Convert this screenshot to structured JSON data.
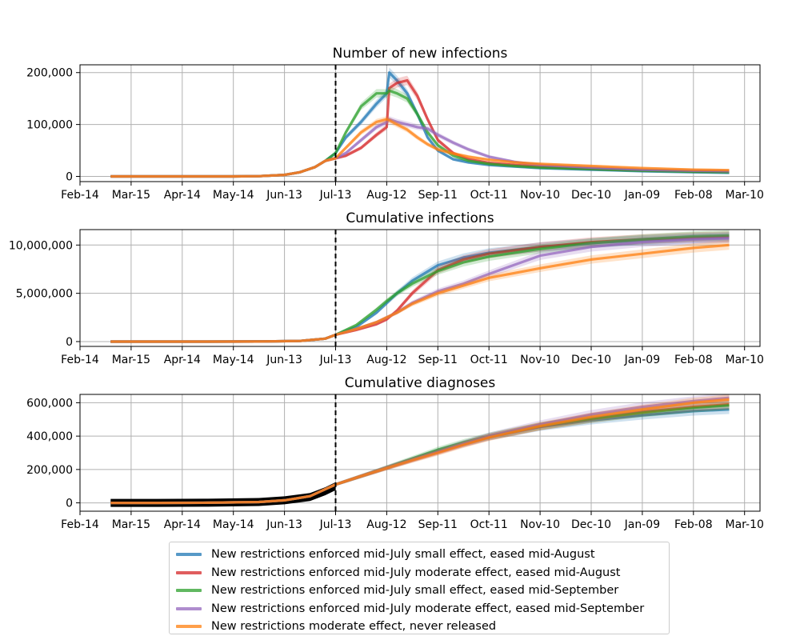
{
  "x_ticks": [
    "Feb-14",
    "Mar-15",
    "Apr-14",
    "May-14",
    "Jun-13",
    "Jul-13",
    "Aug-12",
    "Sep-11",
    "Oct-11",
    "Nov-10",
    "Dec-10",
    "Jan-09",
    "Feb-08",
    "Mar-10"
  ],
  "event_date_index": 5,
  "legend": [
    {
      "name": "New restrictions enforced mid-July small effect, eased mid-August",
      "color": "#1f77b4"
    },
    {
      "name": "New restrictions enforced mid-July moderate effect, eased mid-August",
      "color": "#d62728"
    },
    {
      "name": "New restrictions enforced mid-July small effect, eased mid-September",
      "color": "#2ca02c"
    },
    {
      "name": "New restrictions enforced mid-July moderate effect, eased mid-September",
      "color": "#9467bd"
    },
    {
      "name": "New restrictions moderate effect, never released",
      "color": "#ff7f0e"
    }
  ],
  "chart_data": [
    {
      "type": "line",
      "title": "Number of new infections",
      "ylim": [
        -10000,
        215000
      ],
      "yticks": [
        0,
        100000,
        200000
      ],
      "ytick_labels": [
        "0",
        "100,000",
        "200,000"
      ],
      "x": [
        0.6,
        1.0,
        1.5,
        2.0,
        2.5,
        3.0,
        3.5,
        4.0,
        4.3,
        4.6,
        4.8,
        5.0,
        5.2,
        5.5,
        5.8,
        6.0,
        6.05,
        6.2,
        6.4,
        6.6,
        6.8,
        7.0,
        7.3,
        7.6,
        8.0,
        8.5,
        9.0,
        10.0,
        11.0,
        12.0,
        12.7
      ],
      "series": [
        {
          "name": "New restrictions enforced mid-July small effect, eased mid-August",
          "values": [
            0,
            0,
            0,
            0,
            0,
            0,
            500,
            3000,
            8000,
            18000,
            30000,
            45000,
            75000,
            105000,
            140000,
            160000,
            200000,
            185000,
            160000,
            120000,
            75000,
            50000,
            33000,
            27000,
            22000,
            19000,
            16000,
            13000,
            10000,
            8000,
            7000
          ]
        },
        {
          "name": "New restrictions enforced mid-July moderate effect, eased mid-August",
          "values": [
            0,
            0,
            0,
            0,
            0,
            0,
            500,
            3000,
            8000,
            18000,
            30000,
            35000,
            40000,
            55000,
            80000,
            95000,
            170000,
            180000,
            185000,
            155000,
            110000,
            70000,
            45000,
            33000,
            26000,
            22000,
            19000,
            15000,
            12000,
            10000,
            9000
          ]
        },
        {
          "name": "New restrictions enforced mid-July small effect, eased mid-September",
          "values": [
            0,
            0,
            0,
            0,
            0,
            0,
            500,
            3000,
            8000,
            18000,
            30000,
            45000,
            85000,
            135000,
            160000,
            160000,
            165000,
            160000,
            150000,
            120000,
            85000,
            60000,
            40000,
            30000,
            24000,
            20000,
            17000,
            14000,
            11000,
            9000,
            8000
          ]
        },
        {
          "name": "New restrictions enforced mid-July moderate effect, eased mid-September",
          "values": [
            0,
            0,
            0,
            0,
            0,
            0,
            500,
            3000,
            8000,
            18000,
            30000,
            35000,
            45000,
            70000,
            95000,
            105000,
            110000,
            105000,
            100000,
            95000,
            92000,
            80000,
            65000,
            52000,
            38000,
            28000,
            22000,
            17000,
            13000,
            11000,
            10000
          ]
        },
        {
          "name": "New restrictions moderate effect, never released",
          "values": [
            0,
            0,
            0,
            0,
            0,
            0,
            500,
            3000,
            8000,
            18000,
            30000,
            35000,
            55000,
            85000,
            105000,
            110000,
            108000,
            100000,
            90000,
            75000,
            62000,
            52000,
            44000,
            38000,
            32000,
            27000,
            24000,
            20000,
            16000,
            13000,
            12000
          ]
        }
      ]
    },
    {
      "type": "line",
      "title": "Cumulative infections",
      "ylim": [
        -500000,
        11600000
      ],
      "yticks": [
        0,
        5000000,
        10000000
      ],
      "ytick_labels": [
        "0",
        "5,000,000",
        "10,000,000"
      ],
      "x": [
        0.6,
        1.5,
        2.5,
        3.5,
        4.3,
        4.8,
        5.0,
        5.4,
        5.8,
        6.0,
        6.2,
        6.5,
        7.0,
        7.5,
        8.0,
        9.0,
        10.0,
        11.0,
        12.0,
        12.7
      ],
      "series": [
        {
          "name": "New restrictions enforced mid-July small effect, eased mid-August",
          "values": [
            0,
            0,
            0,
            5000,
            60000,
            300000,
            700000,
            1500000,
            3000000,
            4000000,
            5000000,
            6300000,
            7900000,
            8700000,
            9200000,
            9800000,
            10200000,
            10500000,
            10700000,
            10800000
          ]
        },
        {
          "name": "New restrictions enforced mid-July moderate effect, eased mid-August",
          "values": [
            0,
            0,
            0,
            5000,
            60000,
            300000,
            700000,
            1200000,
            1800000,
            2300000,
            3200000,
            5000000,
            7400000,
            8500000,
            9100000,
            9800000,
            10300000,
            10600000,
            10800000,
            10900000
          ]
        },
        {
          "name": "New restrictions enforced mid-July small effect, eased mid-September",
          "values": [
            0,
            0,
            0,
            5000,
            60000,
            300000,
            700000,
            1700000,
            3300000,
            4200000,
            5000000,
            6000000,
            7300000,
            8200000,
            8800000,
            9600000,
            10200000,
            10600000,
            10900000,
            11000000
          ]
        },
        {
          "name": "New restrictions enforced mid-July moderate effect, eased mid-September",
          "values": [
            0,
            0,
            0,
            5000,
            60000,
            300000,
            700000,
            1300000,
            2000000,
            2500000,
            3000000,
            4000000,
            5200000,
            6000000,
            7000000,
            8900000,
            9800000,
            10300000,
            10600000,
            10700000
          ]
        },
        {
          "name": "New restrictions moderate effect, never released",
          "values": [
            0,
            0,
            0,
            5000,
            60000,
            300000,
            700000,
            1300000,
            2000000,
            2500000,
            3000000,
            3900000,
            5000000,
            5800000,
            6600000,
            7600000,
            8500000,
            9100000,
            9700000,
            10000000
          ]
        }
      ]
    },
    {
      "type": "line",
      "title": "Cumulative diagnoses",
      "ylim": [
        -50000,
        650000
      ],
      "yticks": [
        0,
        200000,
        400000,
        600000
      ],
      "ytick_labels": [
        "0",
        "200,000",
        "400,000",
        "600,000"
      ],
      "x": [
        0.6,
        1.5,
        2.5,
        3.5,
        4.0,
        4.5,
        5.0,
        5.5,
        6.0,
        6.5,
        7.0,
        7.5,
        8.0,
        9.0,
        10.0,
        11.0,
        12.0,
        12.7
      ],
      "observed": {
        "x": [
          0.6,
          1.5,
          2.5,
          3.5,
          4.0,
          4.5,
          4.8,
          5.0
        ],
        "values": [
          0,
          0,
          1000,
          5000,
          15000,
          35000,
          70000,
          100000
        ]
      },
      "series": [
        {
          "name": "New restrictions enforced mid-July small effect, eased mid-August",
          "values": [
            0,
            0,
            1000,
            5000,
            15000,
            40000,
            110000,
            160000,
            210000,
            260000,
            310000,
            355000,
            395000,
            455000,
            495000,
            525000,
            550000,
            560000
          ]
        },
        {
          "name": "New restrictions enforced mid-July moderate effect, eased mid-August",
          "values": [
            0,
            0,
            1000,
            5000,
            15000,
            40000,
            110000,
            160000,
            210000,
            258000,
            305000,
            352000,
            395000,
            458000,
            505000,
            545000,
            575000,
            590000
          ]
        },
        {
          "name": "New restrictions enforced mid-July small effect, eased mid-September",
          "values": [
            0,
            0,
            1000,
            5000,
            15000,
            40000,
            110000,
            160000,
            212000,
            265000,
            318000,
            362000,
            400000,
            460000,
            505000,
            540000,
            570000,
            585000
          ]
        },
        {
          "name": "New restrictions enforced mid-July moderate effect, eased mid-September",
          "values": [
            0,
            0,
            1000,
            5000,
            15000,
            40000,
            110000,
            160000,
            210000,
            258000,
            305000,
            355000,
            400000,
            470000,
            530000,
            575000,
            610000,
            630000
          ]
        },
        {
          "name": "New restrictions moderate effect, never released",
          "values": [
            0,
            0,
            1000,
            5000,
            15000,
            40000,
            110000,
            160000,
            208000,
            255000,
            300000,
            348000,
            392000,
            460000,
            515000,
            560000,
            600000,
            620000
          ]
        }
      ]
    }
  ]
}
